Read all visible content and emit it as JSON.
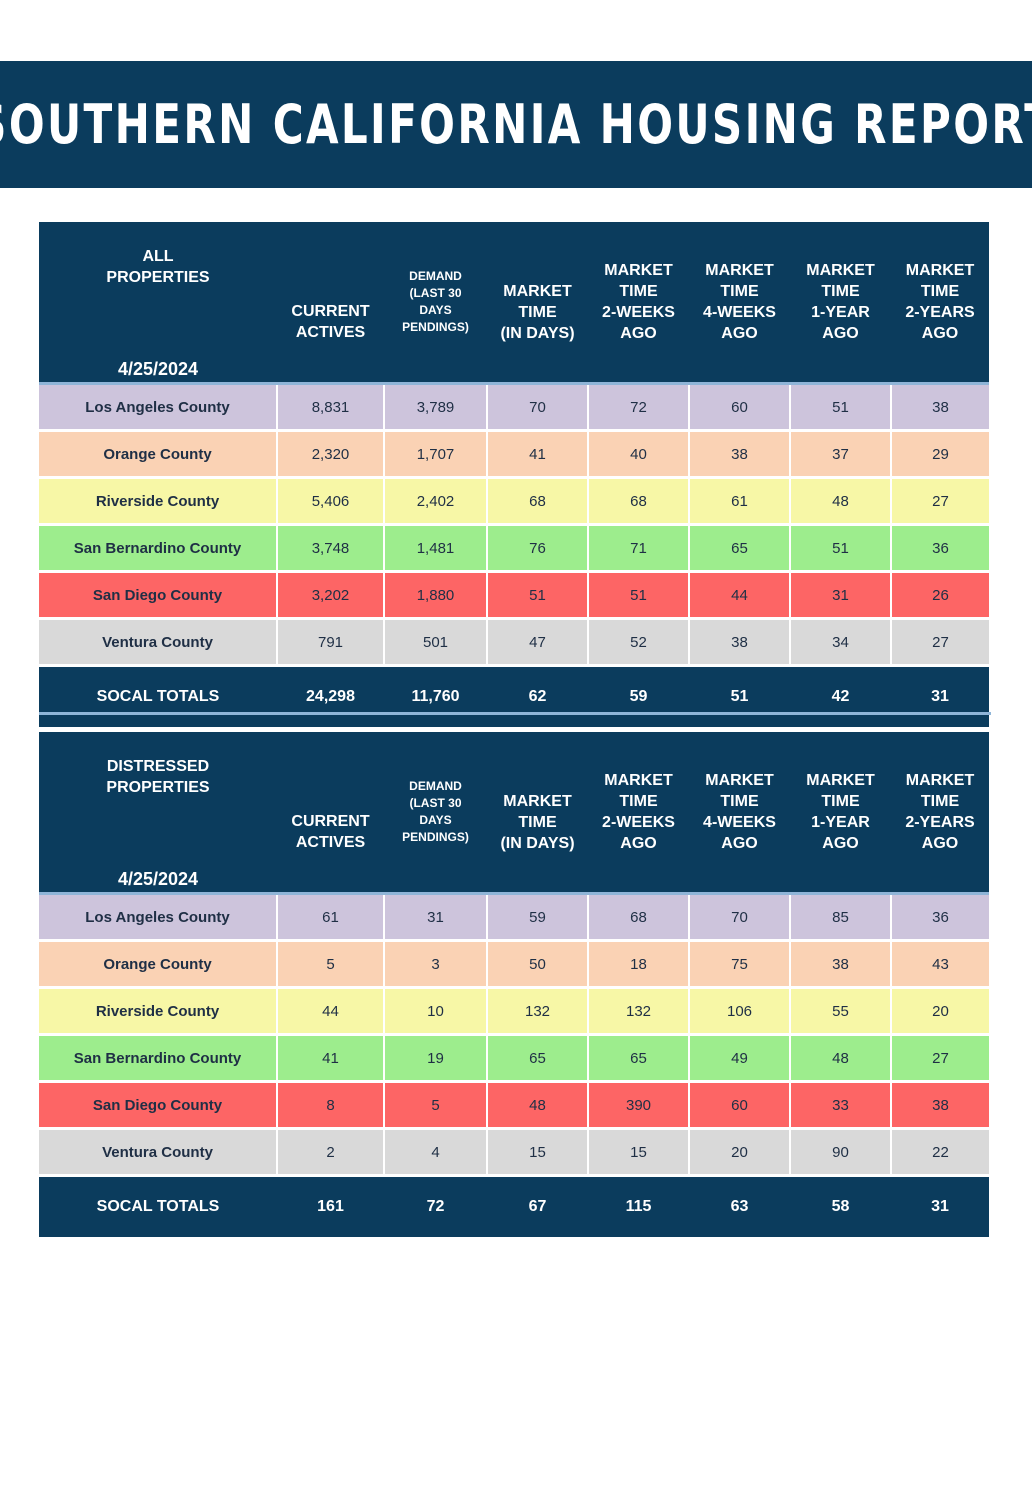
{
  "title": "SOUTHERN CALIFORNIA HOUSING REPORT",
  "colors": {
    "navy": "#0b3c5d",
    "separator": "#8fb5d8",
    "los_angeles": "#cdc4dc",
    "orange": "#fad2b4",
    "riverside": "#f7f7a6",
    "san_bernardino": "#9ded8d",
    "san_diego": "#fd6565",
    "ventura": "#d9d9d9"
  },
  "columns": {
    "current_actives": [
      "CURRENT",
      "ACTIVES"
    ],
    "demand": [
      "DEMAND",
      "(LAST 30",
      "DAYS",
      "PENDINGS)"
    ],
    "market_time": [
      "MARKET",
      "TIME",
      "(IN DAYS)"
    ],
    "mt_2weeks": [
      "MARKET",
      "TIME",
      "2-WEEKS",
      "AGO"
    ],
    "mt_4weeks": [
      "MARKET",
      "TIME",
      "4-WEEKS",
      "AGO"
    ],
    "mt_1year": [
      "MARKET",
      "TIME",
      "1-YEAR",
      "AGO"
    ],
    "mt_2years": [
      "MARKET",
      "TIME",
      "2-YEARS",
      "AGO"
    ]
  },
  "tables": [
    {
      "label": [
        "ALL",
        "PROPERTIES"
      ],
      "date": "4/25/2024",
      "rows": [
        {
          "county": "Los Angeles County",
          "color_key": "los_angeles",
          "values": [
            "8,831",
            "3,789",
            "70",
            "72",
            "60",
            "51",
            "38"
          ]
        },
        {
          "county": "Orange County",
          "color_key": "orange",
          "values": [
            "2,320",
            "1,707",
            "41",
            "40",
            "38",
            "37",
            "29"
          ]
        },
        {
          "county": "Riverside County",
          "color_key": "riverside",
          "values": [
            "5,406",
            "2,402",
            "68",
            "68",
            "61",
            "48",
            "27"
          ]
        },
        {
          "county": "San Bernardino County",
          "color_key": "san_bernardino",
          "values": [
            "3,748",
            "1,481",
            "76",
            "71",
            "65",
            "51",
            "36"
          ]
        },
        {
          "county": "San Diego County",
          "color_key": "san_diego",
          "values": [
            "3,202",
            "1,880",
            "51",
            "51",
            "44",
            "31",
            "26"
          ]
        },
        {
          "county": "Ventura County",
          "color_key": "ventura",
          "values": [
            "791",
            "501",
            "47",
            "52",
            "38",
            "34",
            "27"
          ]
        }
      ],
      "totals": {
        "label": "SOCAL TOTALS",
        "values": [
          "24,298",
          "11,760",
          "62",
          "59",
          "51",
          "42",
          "31"
        ]
      }
    },
    {
      "label": [
        "DISTRESSED",
        "PROPERTIES"
      ],
      "date": "4/25/2024",
      "rows": [
        {
          "county": "Los Angeles County",
          "color_key": "los_angeles",
          "values": [
            "61",
            "31",
            "59",
            "68",
            "70",
            "85",
            "36"
          ]
        },
        {
          "county": "Orange County",
          "color_key": "orange",
          "values": [
            "5",
            "3",
            "50",
            "18",
            "75",
            "38",
            "43"
          ]
        },
        {
          "county": "Riverside County",
          "color_key": "riverside",
          "values": [
            "44",
            "10",
            "132",
            "132",
            "106",
            "55",
            "20"
          ]
        },
        {
          "county": "San Bernardino County",
          "color_key": "san_bernardino",
          "values": [
            "41",
            "19",
            "65",
            "65",
            "49",
            "48",
            "27"
          ]
        },
        {
          "county": "San Diego County",
          "color_key": "san_diego",
          "values": [
            "8",
            "5",
            "48",
            "390",
            "60",
            "33",
            "38"
          ]
        },
        {
          "county": "Ventura County",
          "color_key": "ventura",
          "values": [
            "2",
            "4",
            "15",
            "15",
            "20",
            "90",
            "22"
          ]
        }
      ],
      "totals": {
        "label": "SOCAL TOTALS",
        "values": [
          "161",
          "72",
          "67",
          "115",
          "63",
          "58",
          "31"
        ]
      }
    }
  ]
}
